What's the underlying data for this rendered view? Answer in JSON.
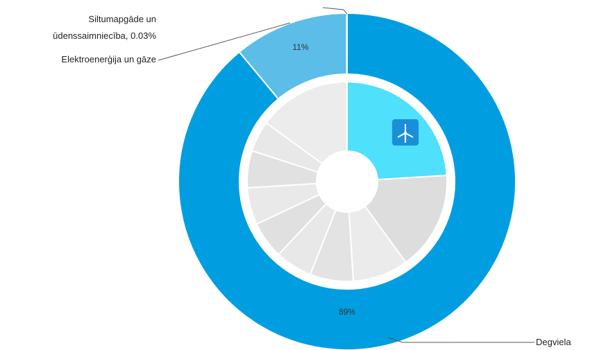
{
  "chart_data": {
    "type": "pie",
    "outer_ring": {
      "slices": [
        {
          "label": "Degviela",
          "value": 89,
          "value_label": "89%",
          "color": "#009ee0"
        },
        {
          "label": "Elektroenerģija un gāze",
          "value": 11,
          "value_label": "11%",
          "color": "#5bbde8"
        },
        {
          "label_lines": [
            "Siltumapgāde un",
            "ūdenssaimniecība, 0.03%"
          ],
          "value": 0.03,
          "color": "#5bbde8"
        }
      ]
    },
    "inner_ring": {
      "slices": [
        {
          "value": 24,
          "color": "#4fe0fb",
          "icon": "wind-turbine-icon"
        },
        {
          "value": 16,
          "color": "#dddddd"
        },
        {
          "value": 9,
          "color": "#ebebeb"
        },
        {
          "value": 7,
          "color": "#e3e3e3"
        },
        {
          "value": 6,
          "color": "#e8e8e8"
        },
        {
          "value": 6,
          "color": "#e0e0e0"
        },
        {
          "value": 6,
          "color": "#e9e9e9"
        },
        {
          "value": 6,
          "color": "#e1e1e1"
        },
        {
          "value": 5,
          "color": "#e8e8e8"
        },
        {
          "value": 15,
          "color": "#ececec"
        }
      ]
    }
  },
  "colors": {
    "wind_icon_bg": "#1a8fd8",
    "separator": "#ffffff",
    "leader": "#555555"
  }
}
